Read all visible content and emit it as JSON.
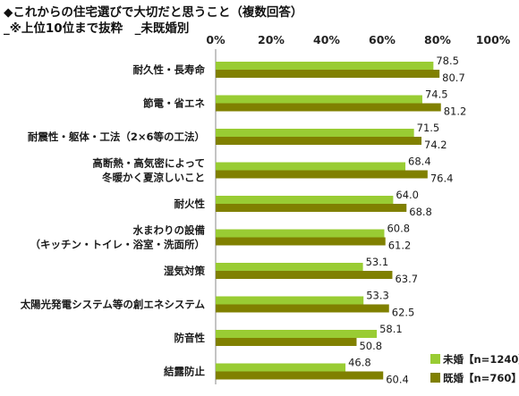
{
  "title": "◆これからの住宅選びで大切だと思うこと（複数回答）",
  "subtitle": "_※上位10位まで抜粋　_未既婚別",
  "colors": {
    "unmarried": "#99cc33",
    "married": "#808000",
    "axis": "#888888"
  },
  "chart_data": {
    "type": "bar",
    "orientation": "horizontal",
    "xlim": [
      0,
      100
    ],
    "xticks": [
      "0%",
      "20%",
      "40%",
      "60%",
      "80%",
      "100%"
    ],
    "categories": [
      [
        "耐久性・長寿命"
      ],
      [
        "節電・省エネ"
      ],
      [
        "耐震性・躯体・工法（2×6等の工法）"
      ],
      [
        "高断熱・高気密によって",
        "冬暖かく夏涼しいこと"
      ],
      [
        "耐火性"
      ],
      [
        "水まわりの設備",
        "（キッチン・トイレ・浴室・洗面所）"
      ],
      [
        "湿気対策"
      ],
      [
        "太陽光発電システム等の創エネシステム"
      ],
      [
        "防音性"
      ],
      [
        "結露防止"
      ]
    ],
    "series": [
      {
        "name": "未婚【n=1240】",
        "values": [
          78.5,
          74.5,
          71.5,
          68.4,
          64.0,
          60.8,
          53.1,
          53.3,
          58.1,
          46.8
        ]
      },
      {
        "name": "既婚【n=760】",
        "values": [
          80.7,
          81.2,
          74.2,
          76.4,
          68.8,
          61.2,
          63.7,
          62.5,
          50.8,
          60.4
        ]
      }
    ],
    "legend_position": "bottom-right"
  }
}
